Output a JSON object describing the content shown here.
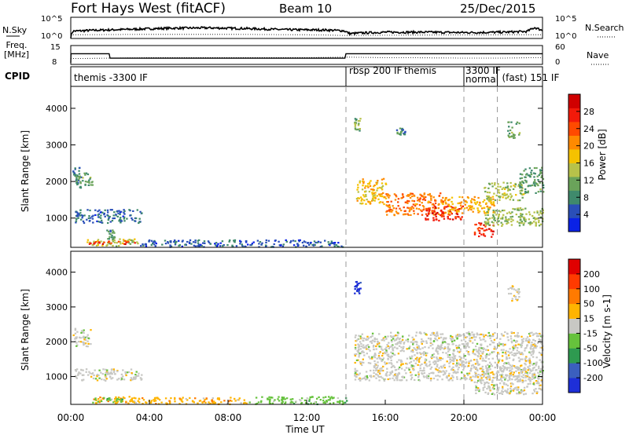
{
  "header": {
    "station": "Fort Hays West (fitACF)",
    "beam": "Beam 10",
    "date": "25/Dec/2015"
  },
  "chart_data": [
    {
      "type": "line",
      "panel": "noise",
      "ylabel_left": "N.Sky",
      "ylabel_right": "N.Search",
      "left_ticks": [
        "10^5",
        "10^0"
      ],
      "right_ticks": [
        "10^5",
        "10^0"
      ],
      "ylim_log10": [
        0,
        5
      ],
      "series": [
        {
          "name": "N.Sky",
          "style": "solid",
          "x_hours": [
            0,
            0.1,
            1,
            3,
            5,
            7,
            9,
            11,
            13,
            13.9,
            14.2,
            14.8,
            16,
            18,
            20,
            22,
            23.2,
            23.6,
            24
          ],
          "log10_values": [
            0,
            1.6,
            1.8,
            2.1,
            2.4,
            2.5,
            2.3,
            2.0,
            1.9,
            1.7,
            0.9,
            1.1,
            1.3,
            1.3,
            1.2,
            1.3,
            1.5,
            2.6,
            1.8
          ]
        },
        {
          "name": "N.Search",
          "style": "dotted",
          "x_hours": [
            0,
            4,
            8,
            12,
            14,
            18,
            22,
            24
          ],
          "log10_values": [
            0.6,
            0.7,
            0.7,
            0.6,
            0.4,
            0.5,
            0.6,
            0.6
          ]
        }
      ]
    },
    {
      "type": "line",
      "panel": "frequency",
      "ylabel_left": "Freq. [MHz]",
      "ylabel_right": "Nave",
      "left_ticks": [
        "15",
        "8"
      ],
      "right_ticks": [
        "60",
        "0"
      ],
      "series": [
        {
          "name": "Freq.",
          "style": "solid",
          "x_hours": [
            0,
            0.01,
            1.95,
            2.0,
            13.95,
            14.0,
            24
          ],
          "values_mhz": [
            8,
            12.5,
            12.5,
            10.3,
            10.3,
            12.5,
            12.5
          ]
        },
        {
          "name": "Nave",
          "style": "dotted",
          "x_hours": [
            0,
            2,
            4,
            8,
            12,
            14,
            16,
            20,
            22,
            24
          ],
          "values": [
            18,
            20,
            22,
            22,
            22,
            24,
            22,
            20,
            20,
            22
          ]
        }
      ]
    },
    {
      "type": "table",
      "panel": "cpid",
      "label": "CPID",
      "modes": [
        {
          "start_hour": 0,
          "text": "themis -3300 IF"
        },
        {
          "start_hour": 14,
          "text": "rbsp 200 IF"
        },
        {
          "start_hour": 16.8,
          "text": "themis"
        },
        {
          "start_hour": 20,
          "text": "3300 IF"
        },
        {
          "start_hour": 20,
          "text": "normal"
        },
        {
          "start_hour": 21.7,
          "text": "(fast) 151 IF"
        }
      ],
      "boundaries_hours": [
        14,
        20,
        21.7
      ]
    },
    {
      "type": "heatmap",
      "panel": "power",
      "ylabel": "Slant Range [km]",
      "yticks": [
        1000,
        2000,
        3000,
        4000
      ],
      "ylim": [
        200,
        4600
      ],
      "xlim_hours": [
        0,
        24
      ],
      "colorbar": {
        "label": "Power [dB]",
        "range": [
          0,
          32
        ],
        "ticks": [
          4,
          8,
          12,
          16,
          20,
          24,
          28
        ],
        "colors": [
          "#0a22e6",
          "#2a4fb8",
          "#3f8a6c",
          "#6aa35a",
          "#b7c24a",
          "#f5c200",
          "#ff8a00",
          "#ff4a00",
          "#f21a0a",
          "#d00000"
        ]
      },
      "regions": [
        {
          "t": [
            0.05,
            0.5
          ],
          "r": [
            1850,
            2400
          ],
          "level": 7
        },
        {
          "t": [
            0.2,
            1.1
          ],
          "r": [
            1900,
            2250
          ],
          "level": 10
        },
        {
          "t": [
            0.1,
            3.6
          ],
          "r": [
            880,
            1250
          ],
          "level": 6
        },
        {
          "t": [
            0.8,
            3.4
          ],
          "r": [
            250,
            450
          ],
          "level": 14
        },
        {
          "t": [
            0.9,
            3.4
          ],
          "r": [
            310,
            400
          ],
          "level": 26
        },
        {
          "t": [
            1.8,
            2.2
          ],
          "r": [
            450,
            700
          ],
          "level": 9
        },
        {
          "t": [
            3.4,
            14.0
          ],
          "r": [
            230,
            420
          ],
          "level": 5
        },
        {
          "t": [
            14.4,
            14.7
          ],
          "r": [
            3400,
            3750
          ],
          "level": 12
        },
        {
          "t": [
            16.5,
            17.0
          ],
          "r": [
            3300,
            3500
          ],
          "level": 8
        },
        {
          "t": [
            14.5,
            16.0
          ],
          "r": [
            1400,
            2100
          ],
          "level": 18
        },
        {
          "t": [
            16.0,
            19.0
          ],
          "r": [
            1100,
            1700
          ],
          "level": 22
        },
        {
          "t": [
            18.0,
            20.0
          ],
          "r": [
            950,
            1350
          ],
          "level": 27
        },
        {
          "t": [
            19.0,
            21.5
          ],
          "r": [
            1150,
            1600
          ],
          "level": 19
        },
        {
          "t": [
            21.0,
            23.0
          ],
          "r": [
            1500,
            2000
          ],
          "level": 14
        },
        {
          "t": [
            22.8,
            24.0
          ],
          "r": [
            1700,
            2400
          ],
          "level": 10
        },
        {
          "t": [
            20.5,
            21.5
          ],
          "r": [
            500,
            900
          ],
          "level": 27
        },
        {
          "t": [
            21.0,
            24.0
          ],
          "r": [
            800,
            1300
          ],
          "level": 13
        },
        {
          "t": [
            22.2,
            22.8
          ],
          "r": [
            3200,
            3650
          ],
          "level": 11
        }
      ]
    },
    {
      "type": "heatmap",
      "panel": "velocity",
      "ylabel": "Slant Range [km]",
      "xlabel": "Time UT",
      "yticks": [
        1000,
        2000,
        3000,
        4000
      ],
      "ylim": [
        200,
        4600
      ],
      "xlim_hours": [
        0,
        24
      ],
      "xticks": [
        "00:00",
        "04:00",
        "08:00",
        "12:00",
        "16:00",
        "20:00",
        "00:00"
      ],
      "colorbar": {
        "label": "Velocity [m s-1]",
        "ticks": [
          200,
          100,
          50,
          15,
          -15,
          -50,
          -100,
          -200
        ],
        "colors": [
          "#1e2fd8",
          "#3b5fbe",
          "#2e9a50",
          "#66c23c",
          "#c8c8c4",
          "#ffb400",
          "#ff7a00",
          "#ff3a00",
          "#e00000"
        ]
      },
      "regions": [
        {
          "t": [
            0.1,
            1.0
          ],
          "r": [
            1850,
            2400
          ],
          "bin": 4
        },
        {
          "t": [
            0.1,
            3.6
          ],
          "r": [
            900,
            1250
          ],
          "bin": 4
        },
        {
          "t": [
            0.8,
            3.4
          ],
          "r": [
            250,
            450
          ],
          "bin": 5
        },
        {
          "t": [
            1.0,
            2.6
          ],
          "r": [
            270,
            420
          ],
          "bin": 3
        },
        {
          "t": [
            3.4,
            9.0
          ],
          "r": [
            220,
            420
          ],
          "bin": 5
        },
        {
          "t": [
            9.0,
            14.0
          ],
          "r": [
            220,
            450
          ],
          "bin": 3
        },
        {
          "t": [
            14.4,
            14.7
          ],
          "r": [
            3400,
            3750
          ],
          "bin": 0
        },
        {
          "t": [
            14.4,
            24.0
          ],
          "r": [
            900,
            2300
          ],
          "bin": 4
        },
        {
          "t": [
            20.5,
            24.0
          ],
          "r": [
            500,
            1300
          ],
          "bin": 4
        },
        {
          "t": [
            22.2,
            22.8
          ],
          "r": [
            3200,
            3650
          ],
          "bin": 4
        }
      ]
    }
  ]
}
